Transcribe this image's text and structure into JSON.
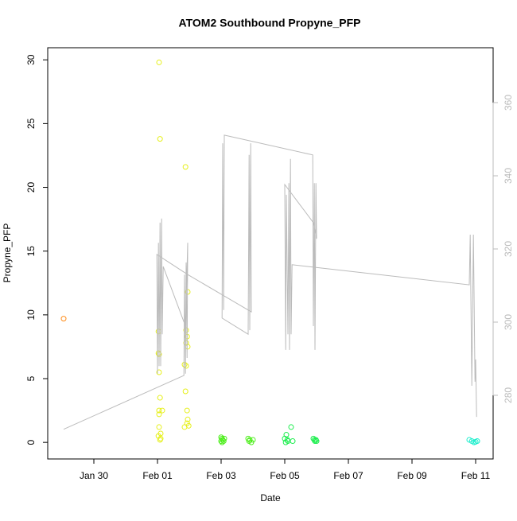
{
  "chart_data": {
    "type": "scatter",
    "title": "ATOM2 Southbound Propyne_PFP",
    "x_label": "Date",
    "y_label": "Propyne_PFP",
    "xlim": [
      28.55,
      42.55
    ],
    "xticks": [
      {
        "value": 30,
        "label": "Jan 30"
      },
      {
        "value": 32,
        "label": "Feb 01"
      },
      {
        "value": 34,
        "label": "Feb 03"
      },
      {
        "value": 36,
        "label": "Feb 05"
      },
      {
        "value": 38,
        "label": "Feb 07"
      },
      {
        "value": 40,
        "label": "Feb 09"
      },
      {
        "value": 42,
        "label": "Feb 11"
      }
    ],
    "ylim": [
      -1.3,
      30.95
    ],
    "yticks": [
      0,
      5,
      10,
      15,
      20,
      25,
      30
    ],
    "y2lim": [
      262.6,
      375
    ],
    "y2ticks": [
      280,
      300,
      320,
      340,
      360
    ],
    "y2color": "#bbbbbb",
    "series": [
      {
        "type": "scatter",
        "color": "#ff8c1a",
        "x": [
          29.05
        ],
        "values": [
          9.7
        ]
      },
      {
        "type": "scatter",
        "color": "#e6f01a",
        "x": [
          32.05,
          32.08,
          32.03,
          32.03,
          32.05,
          32.05,
          32.08,
          32.05,
          32.15,
          32.05,
          32.1,
          32.05,
          32.03,
          32.1,
          32.08,
          32.88,
          32.95,
          32.9,
          32.93,
          32.9,
          32.95,
          32.85,
          32.9,
          32.88,
          32.93,
          32.95,
          32.93,
          32.98,
          32.85
        ],
        "values": [
          29.8,
          23.8,
          8.7,
          7.0,
          6.9,
          5.5,
          3.5,
          2.5,
          2.5,
          2.2,
          0.7,
          1.2,
          0.5,
          0.3,
          0.2,
          21.6,
          11.8,
          8.8,
          8.3,
          7.8,
          7.5,
          6.1,
          6.0,
          4.0,
          2.5,
          1.8,
          1.5,
          1.3,
          1.2
        ]
      },
      {
        "type": "scatter",
        "color": "#4cee1a",
        "x": [
          34.0,
          34.03,
          34.05,
          34.08,
          34.03,
          34.1,
          34.0,
          34.85,
          34.9,
          34.88,
          34.95,
          35.0
        ],
        "values": [
          0.4,
          0.3,
          0.2,
          0.1,
          0.0,
          0.3,
          0.1,
          0.3,
          0.2,
          0.1,
          0.0,
          0.2
        ]
      },
      {
        "type": "scatter",
        "color": "#1aee4c",
        "x": [
          36.05,
          36.0,
          36.08,
          36.1,
          36.03,
          36.2,
          36.25,
          36.9,
          36.93,
          36.95,
          37.0,
          36.98
        ],
        "values": [
          0.6,
          0.3,
          0.2,
          0.1,
          0.0,
          1.2,
          0.1,
          0.3,
          0.2,
          0.1,
          0.1,
          0.2
        ]
      },
      {
        "type": "scatter",
        "color": "#1aeecc",
        "x": [
          41.8,
          41.88,
          41.95,
          42.0,
          42.05
        ],
        "values": [
          0.2,
          0.1,
          0.0,
          0.05,
          0.1
        ]
      },
      {
        "type": "line",
        "axis": "y2",
        "color": "#bbbbbb",
        "x": [
          29.05,
          32.83,
          32.85,
          32.88,
          32.9,
          32.93,
          32.95,
          32.88,
          32.18,
          32.15,
          32.13,
          32.1,
          32.08,
          32.05,
          32.03,
          32.0,
          31.98,
          32.95,
          34.95,
          34.93,
          34.9,
          34.88,
          34.85,
          34.03,
          34.05,
          34.08,
          34.1,
          36.88,
          36.9,
          36.93,
          36.95,
          36.98,
          37.0,
          36.9,
          36.0,
          36.03,
          36.05,
          36.1,
          36.13,
          36.15,
          36.18,
          36.2,
          36.23,
          41.8,
          41.83,
          41.88,
          41.93,
          41.98,
          42.0,
          42.03
        ],
        "values": [
          270.7,
          285.4,
          313.0,
          285.9,
          316.3,
          290.2,
          321.7,
          298.9,
          315.2,
          296.7,
          328.3,
          288.0,
          327.2,
          288.0,
          321.7,
          285.9,
          318.5,
          313.0,
          302.8,
          348.9,
          297.8,
          345.7,
          296.7,
          301.1,
          348.9,
          303.3,
          351.1,
          345.7,
          298.9,
          338.0,
          292.4,
          338.0,
          322.8,
          327.2,
          337.6,
          292.4,
          334.8,
          296.7,
          338.0,
          292.4,
          344.6,
          296.7,
          315.7,
          310.2,
          323.9,
          282.6,
          323.9,
          283.7,
          289.8,
          274.1
        ]
      }
    ]
  }
}
